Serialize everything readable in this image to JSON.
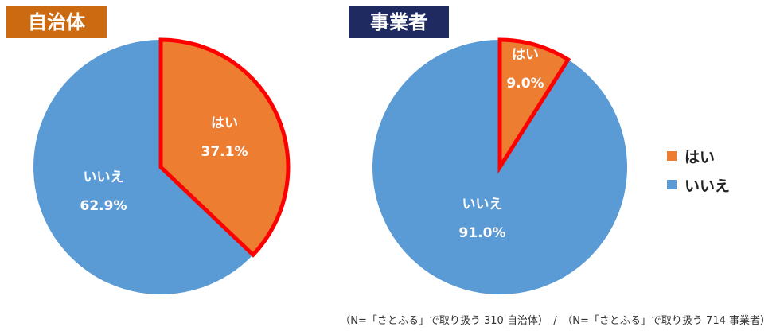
{
  "chart_data": [
    {
      "type": "pie",
      "title": "自治体",
      "title_bg": "#CC6A12",
      "slices": [
        {
          "label": "はい",
          "value": 37.1,
          "value_label": "37.1%",
          "color": "#ED7D31",
          "highlight": true
        },
        {
          "label": "いいえ",
          "value": 62.9,
          "value_label": "62.9%",
          "color": "#5B9BD5",
          "highlight": false
        }
      ]
    },
    {
      "type": "pie",
      "title": "事業者",
      "title_bg": "#1F2A60",
      "slices": [
        {
          "label": "はい",
          "value": 9.0,
          "value_label": "9.0%",
          "color": "#ED7D31",
          "highlight": true
        },
        {
          "label": "いいえ",
          "value": 91.0,
          "value_label": "91.0%",
          "color": "#5B9BD5",
          "highlight": false
        }
      ]
    }
  ],
  "legend": [
    {
      "label": "はい",
      "color": "#ED7D31"
    },
    {
      "label": "いいえ",
      "color": "#5B9BD5"
    }
  ],
  "highlight_color": "#FF0000",
  "footnote": "（N=「さとふる」で取り扱う 310 自治体）　/　（N=「さとふる」で取り扱う 714 事業者）"
}
